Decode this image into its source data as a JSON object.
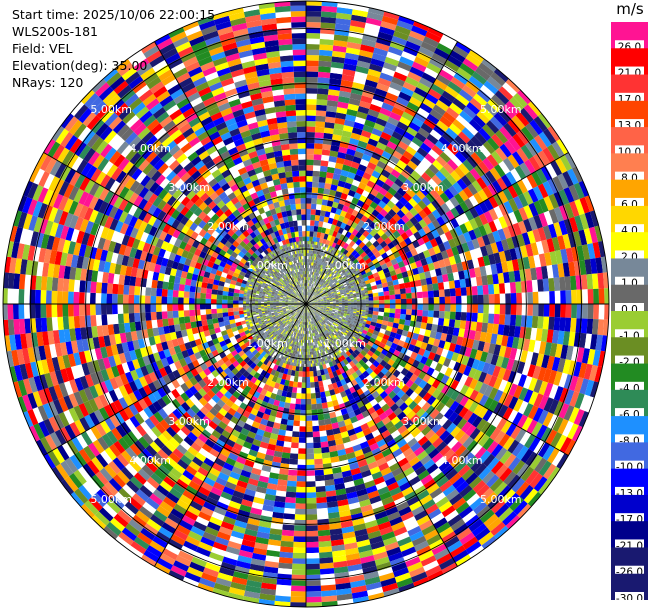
{
  "info": {
    "start_time": "Start time: 2025/10/06 22:00:15",
    "instrument": "WLS200s-181",
    "field": "Field: VEL",
    "elevation": "Elevation(deg): 35.00",
    "nrays": "NRays: 120"
  },
  "colorbar": {
    "unit": "m/s",
    "bands": [
      {
        "label": "26.0",
        "color": "#ff1493"
      },
      {
        "label": "21.0",
        "color": "#ff0000"
      },
      {
        "label": "17.0",
        "color": "#ff3333"
      },
      {
        "label": "13.0",
        "color": "#ff4500"
      },
      {
        "label": "10.0",
        "color": "#ff6347"
      },
      {
        "label": "8.0",
        "color": "#ff7f50"
      },
      {
        "label": "6.0",
        "color": "#ffa500"
      },
      {
        "label": "4.0",
        "color": "#ffd700"
      },
      {
        "label": "2.0",
        "color": "#ffff00"
      },
      {
        "label": "1.0",
        "color": "#778899"
      },
      {
        "label": "0.0",
        "color": "#696969"
      },
      {
        "label": "-1.0",
        "color": "#9acd32"
      },
      {
        "label": "-2.0",
        "color": "#6b8e23"
      },
      {
        "label": "-4.0",
        "color": "#228b22"
      },
      {
        "label": "-6.0",
        "color": "#2e8b57"
      },
      {
        "label": "-8.0",
        "color": "#1e90ff"
      },
      {
        "label": "-10.0",
        "color": "#4169e1"
      },
      {
        "label": "-13.0",
        "color": "#0000ff"
      },
      {
        "label": "-17.0",
        "color": "#0000cd"
      },
      {
        "label": "-21.0",
        "color": "#00008b"
      },
      {
        "label": "-26.0",
        "color": "#191970"
      },
      {
        "label": "-30.0",
        "color": "#191970"
      }
    ]
  },
  "chart_data": {
    "type": "heatmap",
    "projection": "polar",
    "field": "VEL",
    "nrays": 120,
    "range_rings_km": [
      {
        "value": 1,
        "label": "1.00km"
      },
      {
        "value": 2,
        "label": "2.00km"
      },
      {
        "value": 3,
        "label": "3.00km"
      },
      {
        "value": 4,
        "label": "4.00km"
      },
      {
        "value": 5,
        "label": "5.00km"
      }
    ],
    "max_range_km": 5.5,
    "grid": true,
    "spokes_deg": 30,
    "values_description_note": "",
    "inner_palette": [
      "#778899",
      "#696969",
      "#9acd32",
      "#ffff00",
      "#ffffff"
    ]
  }
}
